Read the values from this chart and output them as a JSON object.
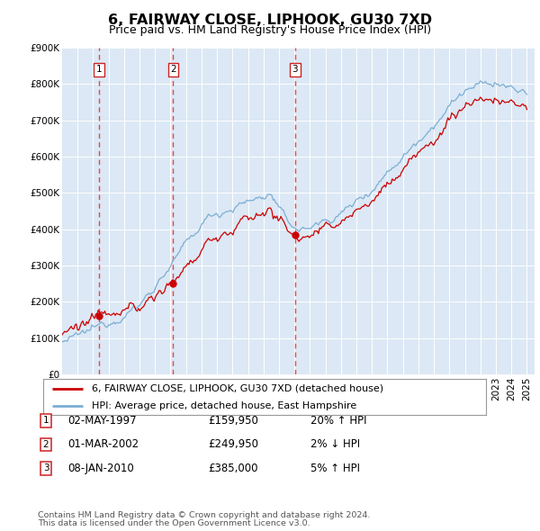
{
  "title": "6, FAIRWAY CLOSE, LIPHOOK, GU30 7XD",
  "subtitle": "Price paid vs. HM Land Registry's House Price Index (HPI)",
  "legend_line1": "6, FAIRWAY CLOSE, LIPHOOK, GU30 7XD (detached house)",
  "legend_line2": "HPI: Average price, detached house, East Hampshire",
  "transactions": [
    {
      "num": 1,
      "date": "02-MAY-1997",
      "price": 159950,
      "pct": "20%",
      "dir": "↑"
    },
    {
      "num": 2,
      "date": "01-MAR-2002",
      "price": 249950,
      "pct": "2%",
      "dir": "↓"
    },
    {
      "num": 3,
      "date": "08-JAN-2010",
      "price": 385000,
      "pct": "5%",
      "dir": "↑"
    }
  ],
  "transaction_years": [
    1997.37,
    2002.17,
    2010.03
  ],
  "transaction_prices": [
    159950,
    249950,
    385000
  ],
  "footnote1": "Contains HM Land Registry data © Crown copyright and database right 2024.",
  "footnote2": "This data is licensed under the Open Government Licence v3.0.",
  "hpi_color": "#7bafd4",
  "price_color": "#cc0000",
  "dashed_color": "#ee4444",
  "background_color": "#dce8f5",
  "grid_color": "#ffffff",
  "ylim": [
    0,
    900000
  ],
  "xlim_start": 1995.0,
  "xlim_end": 2025.5
}
